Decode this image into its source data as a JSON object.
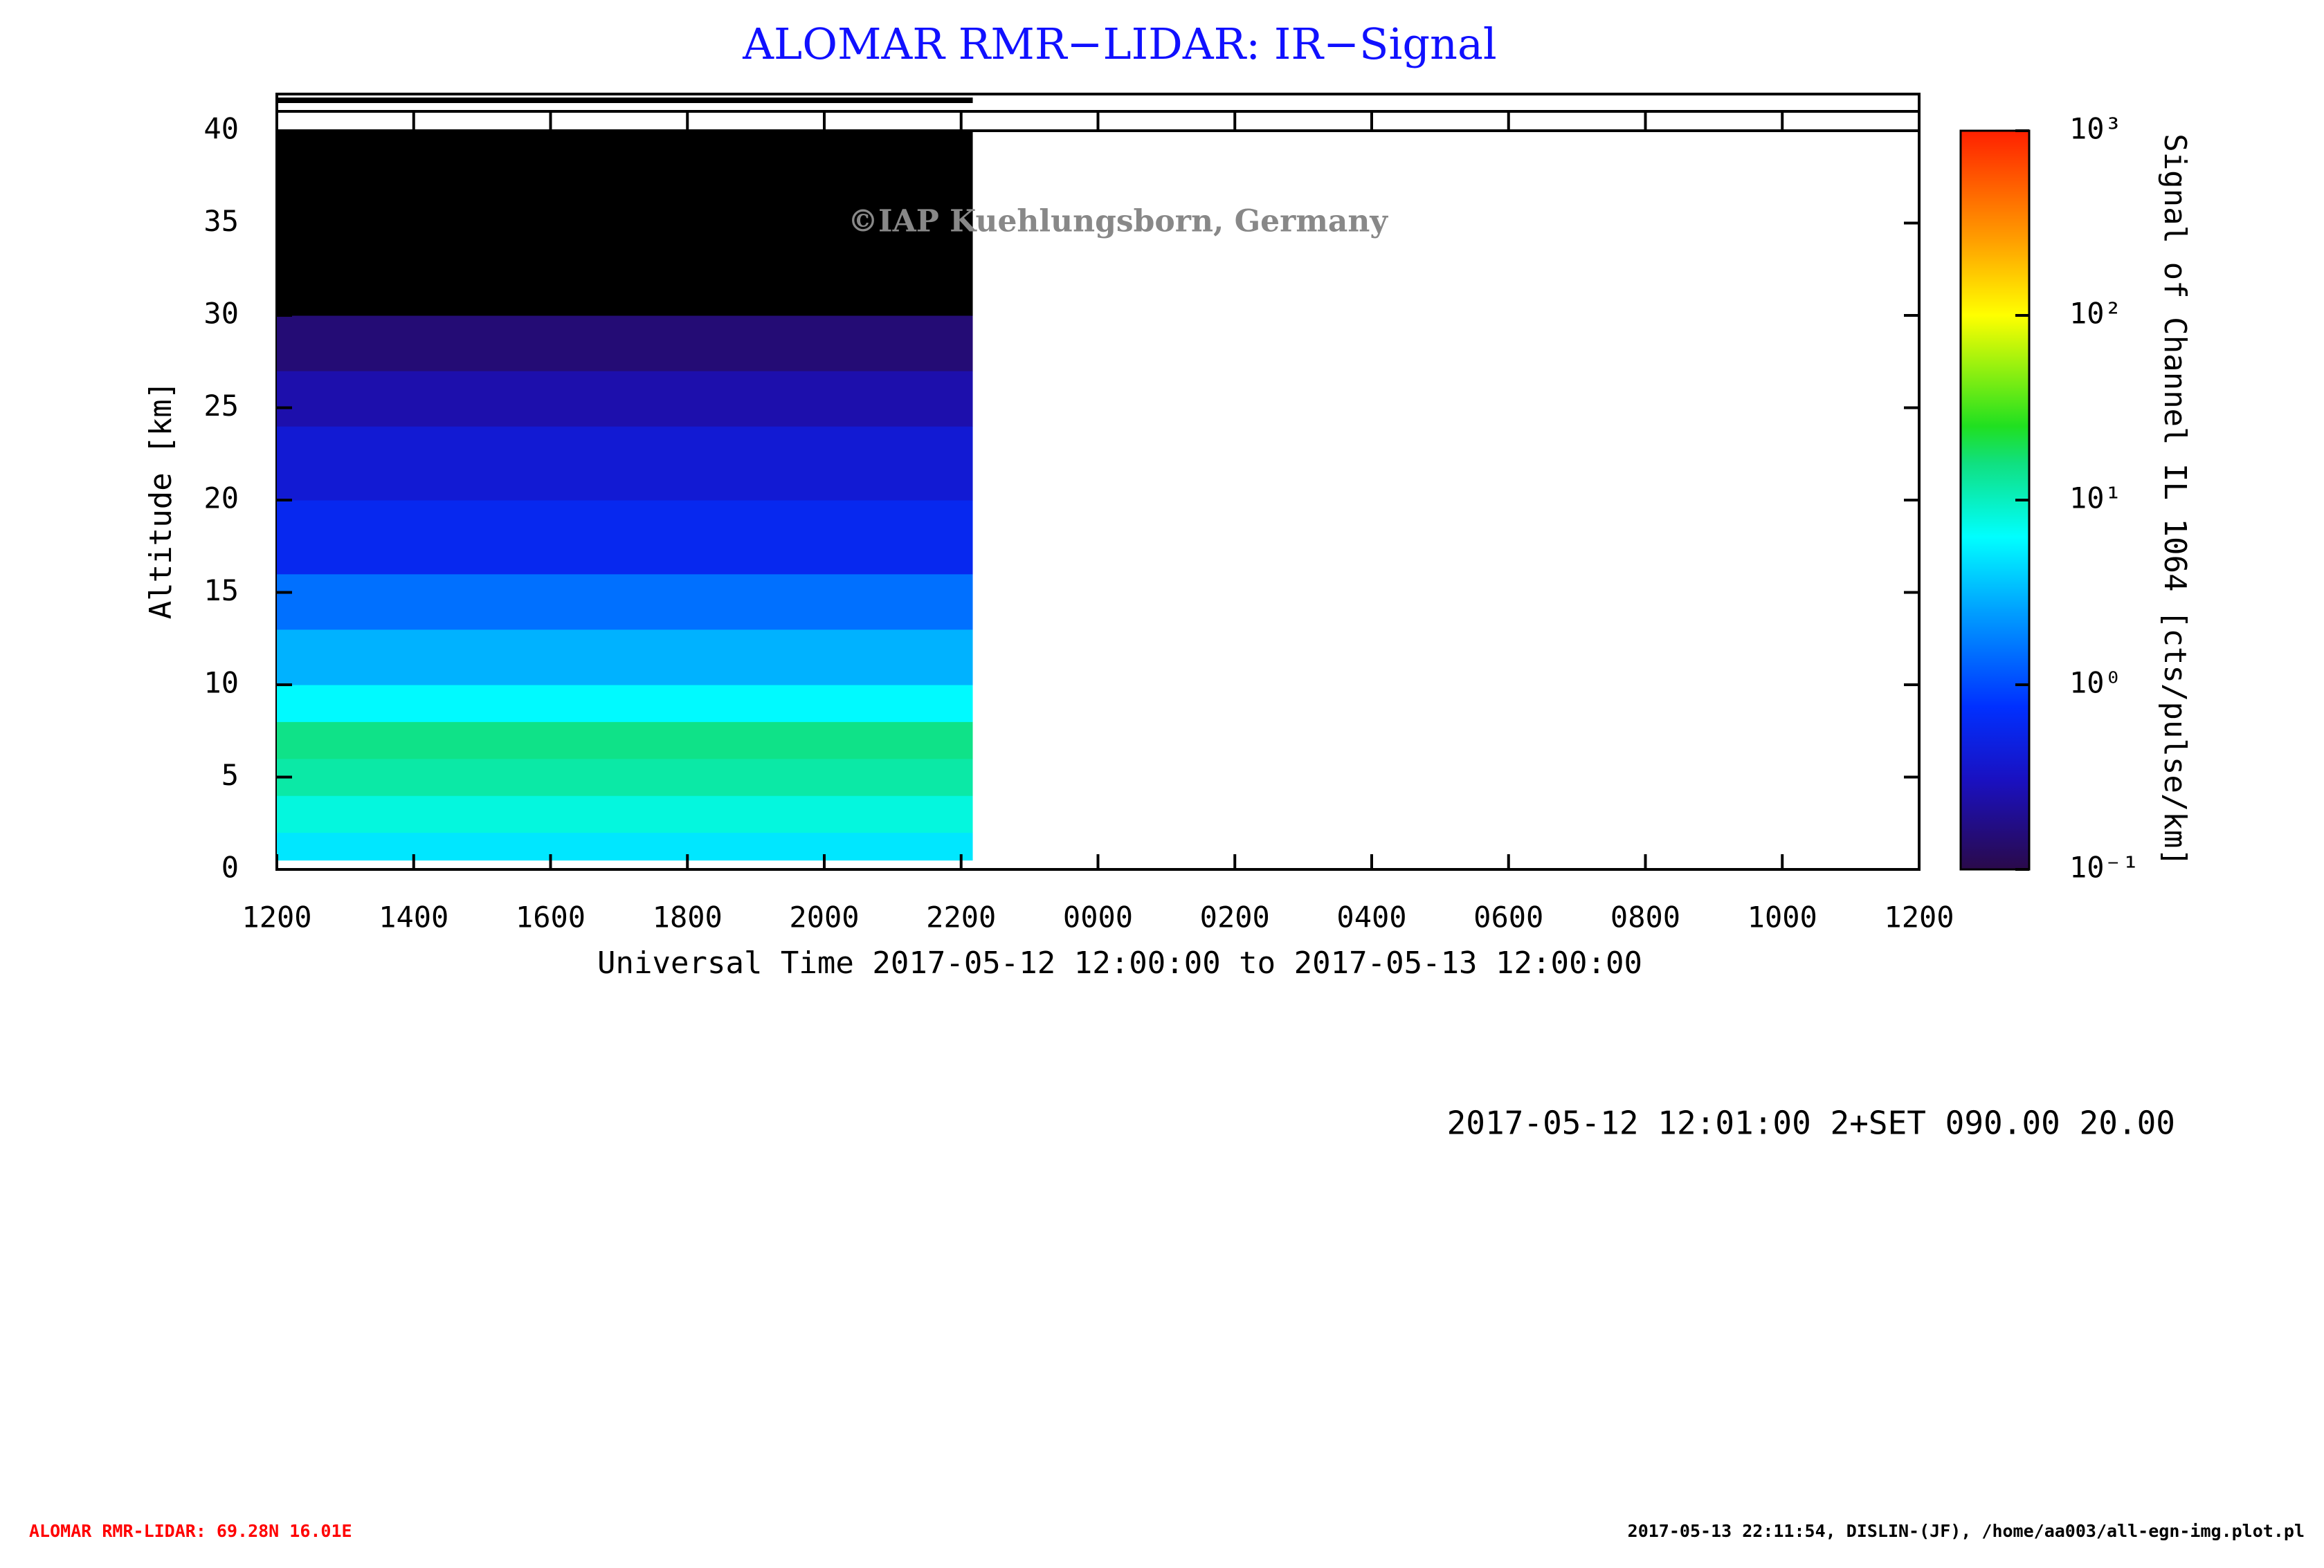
{
  "chart_data": {
    "type": "heatmap",
    "title": "ALOMAR RMR−LIDAR: IR−Signal",
    "watermark": "©IAP Kuehlungsborn, Germany",
    "ylabel": "Altitude [km]",
    "xlabel": "Universal Time 2017-05-12 12:00:00 to 2017-05-13 12:00:00",
    "colorbar_label": "Signal of Channel IL 1064 [cts/pulse/km]",
    "info": "2017-05-12 12:01:00 2+SET 090.00 20.00",
    "footer_left": "ALOMAR RMR-LIDAR: 69.28N 16.01E",
    "footer_right": "2017-05-13 22:11:54, DISLIN-(JF), /home/aa003/all-egn-img.plot.pl",
    "xlim": [
      0,
      24
    ],
    "xticks": [
      {
        "value": 0,
        "label": "1200"
      },
      {
        "value": 2,
        "label": "1400"
      },
      {
        "value": 4,
        "label": "1600"
      },
      {
        "value": 6,
        "label": "1800"
      },
      {
        "value": 8,
        "label": "2000"
      },
      {
        "value": 10,
        "label": "2200"
      },
      {
        "value": 12,
        "label": "0000"
      },
      {
        "value": 14,
        "label": "0200"
      },
      {
        "value": 16,
        "label": "0400"
      },
      {
        "value": 18,
        "label": "0600"
      },
      {
        "value": 20,
        "label": "0800"
      },
      {
        "value": 22,
        "label": "1000"
      },
      {
        "value": 24,
        "label": "1200"
      }
    ],
    "ylim": [
      0,
      40
    ],
    "yticks": [
      0,
      5,
      10,
      15,
      20,
      25,
      30,
      35,
      40
    ],
    "x_edges": [
      0,
      10.17
    ],
    "y_edges": [
      0.5,
      2,
      4,
      6,
      8,
      10,
      13,
      16,
      20,
      24,
      27,
      30,
      40
    ],
    "values": [
      5,
      8,
      12,
      15,
      6,
      3,
      1.5,
      0.6,
      0.4,
      0.25,
      0.15,
      0.05
    ],
    "clim": [
      0.1,
      1000
    ],
    "log_scale": true,
    "cticks": [
      {
        "value": 0.1,
        "label": "10⁻¹"
      },
      {
        "value": 1,
        "label": "10⁰"
      },
      {
        "value": 10,
        "label": "10¹"
      },
      {
        "value": 100,
        "label": "10²"
      },
      {
        "value": 1000,
        "label": "10³"
      }
    ]
  }
}
